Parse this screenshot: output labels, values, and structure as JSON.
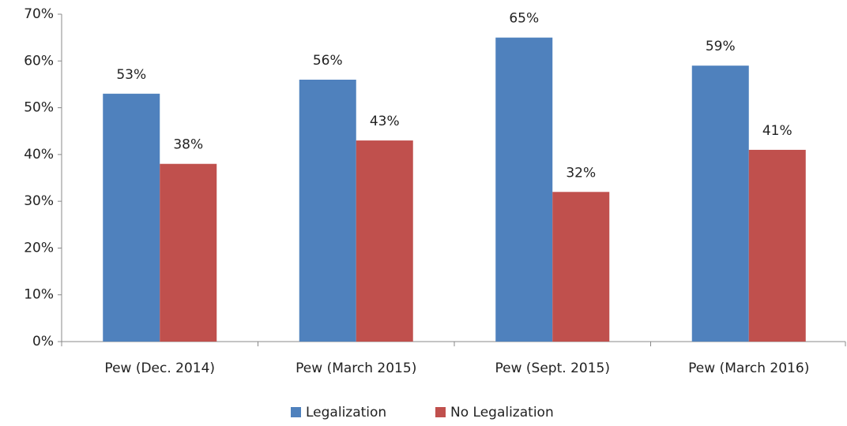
{
  "chart_data": {
    "type": "bar",
    "categories": [
      "Pew (Dec. 2014)",
      "Pew (March 2015)",
      "Pew (Sept. 2015)",
      "Pew (March 2016)"
    ],
    "series": [
      {
        "name": "Legalization",
        "color": "#4f81bd",
        "values": [
          53,
          56,
          65,
          59
        ],
        "value_labels": [
          "53%",
          "56%",
          "65%",
          "59%"
        ]
      },
      {
        "name": "No Legalization",
        "color": "#c0504d",
        "values": [
          38,
          43,
          32,
          41
        ],
        "value_labels": [
          "38%",
          "43%",
          "32%",
          "41%"
        ]
      }
    ],
    "ylim": [
      0,
      70
    ],
    "yticks": [
      {
        "value": 0,
        "label": "0%"
      },
      {
        "value": 10,
        "label": "10%"
      },
      {
        "value": 20,
        "label": "20%"
      },
      {
        "value": 30,
        "label": "30%"
      },
      {
        "value": 40,
        "label": "40%"
      },
      {
        "value": 50,
        "label": "50%"
      },
      {
        "value": 60,
        "label": "60%"
      },
      {
        "value": 70,
        "label": "70%"
      }
    ],
    "legend": "bottom"
  }
}
